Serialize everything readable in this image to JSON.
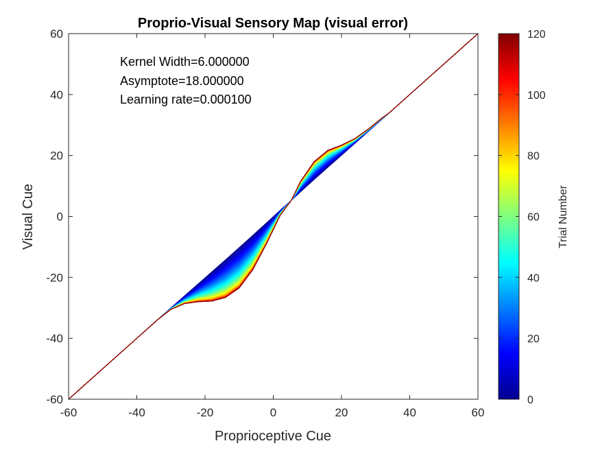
{
  "chart_data": {
    "type": "line",
    "title": "Proprio-Visual Sensory Map (visual error)",
    "xlabel": "Proprioceptive Cue",
    "ylabel": "Visual Cue",
    "xlim": [
      -60,
      60
    ],
    "ylim": [
      -60,
      60
    ],
    "x_ticks": [
      "-60",
      "-40",
      "-20",
      "0",
      "20",
      "40",
      "60"
    ],
    "y_ticks": [
      "-60",
      "-40",
      "-20",
      "0",
      "20",
      "40",
      "60"
    ],
    "annotations": [
      "Kernel Width=6.000000",
      "Asymptote=18.000000",
      "Learning rate=0.000100"
    ],
    "colorbar": {
      "label": "Trial Number",
      "range": [
        0,
        120
      ],
      "ticks": [
        "0",
        "20",
        "40",
        "60",
        "80",
        "100",
        "120"
      ],
      "colormap": "jet"
    },
    "series_family": {
      "trials_min": 0,
      "trials_max": 120,
      "curve_x": [
        -60,
        -40,
        -34,
        -30,
        -26,
        -22,
        -18,
        -14,
        -10,
        -6,
        -2,
        2,
        5.3,
        8,
        12,
        16,
        20,
        24,
        28,
        32,
        34,
        40,
        60
      ],
      "final_curve_y": [
        -60,
        -40,
        -34,
        -30.5,
        -28.6,
        -28.0,
        -27.8,
        -26.6,
        -23.5,
        -17.5,
        -9.0,
        0.3,
        5.3,
        11.5,
        18.0,
        21.7,
        23.4,
        25.6,
        28.8,
        32.4,
        34,
        40,
        60
      ],
      "identity_y": [
        -60,
        -40,
        -34,
        -30,
        -26,
        -22,
        -18,
        -14,
        -10,
        -6,
        -2,
        2,
        5.3,
        8,
        12,
        16,
        20,
        24,
        28,
        32,
        34,
        40,
        60
      ]
    }
  }
}
